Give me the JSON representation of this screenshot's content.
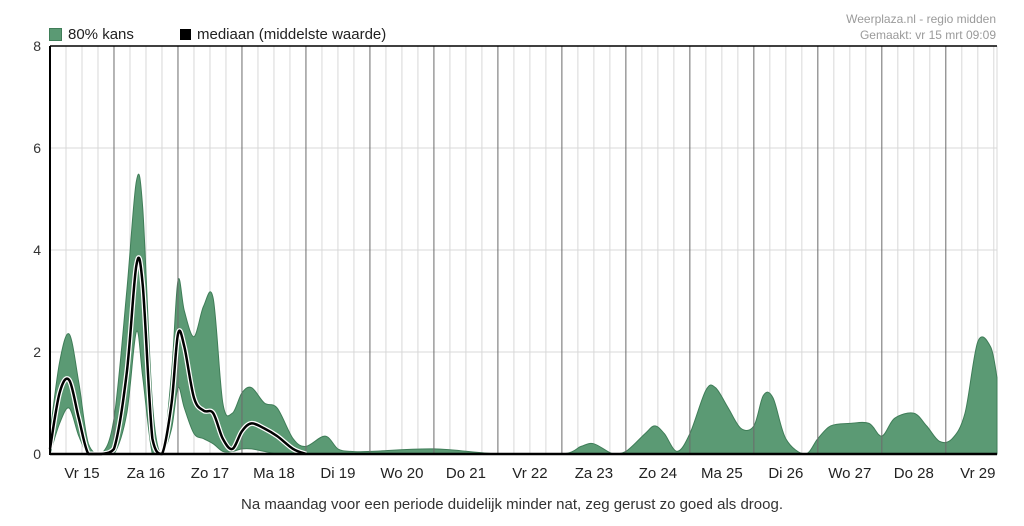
{
  "legend": {
    "band_label": "80% kans",
    "median_label": "mediaan (middelste waarde)"
  },
  "credits": {
    "source": "Weerplaza.nl - regio midden",
    "made": "Gemaakt: vr 15 mrt 09:09"
  },
  "caption": "Na maandag voor een periode duidelijk minder nat, zeg gerust zo goed als droog.",
  "colors": {
    "band": "#5b9a74",
    "band_stroke": "#3f7d58",
    "median": "#000000",
    "grid": "#d8d8d8",
    "day_line": "#6b6b6b"
  },
  "chart_data": {
    "type": "area",
    "title": "",
    "xlabel": "",
    "ylabel": "",
    "x_unit": "days",
    "xlim": [
      0,
      14.8
    ],
    "ylim": [
      0,
      8
    ],
    "yticks": [
      0,
      2,
      4,
      6,
      8
    ],
    "categories": [
      "Vr 15",
      "Za 16",
      "Zo 17",
      "Ma 18",
      "Di 19",
      "Wo 20",
      "Do 21",
      "Vr 22",
      "Za 23",
      "Zo 24",
      "Ma 25",
      "Di 26",
      "Wo 27",
      "Do 28",
      "Vr 29"
    ],
    "grid": true,
    "legend_position": "top-left",
    "series": [
      {
        "name": "80% kans",
        "kind": "band",
        "x": [
          0,
          0.15,
          0.3,
          0.45,
          0.6,
          0.8,
          1.0,
          1.2,
          1.35,
          1.45,
          1.6,
          1.75,
          1.9,
          2.0,
          2.1,
          2.25,
          2.4,
          2.55,
          2.7,
          2.85,
          3.0,
          3.15,
          3.35,
          3.55,
          3.8,
          4.0,
          4.3,
          4.5,
          4.7,
          5.0,
          6.0,
          7.0,
          8.0,
          8.3,
          8.5,
          8.8,
          9.0,
          9.3,
          9.45,
          9.6,
          9.8,
          10.0,
          10.25,
          10.4,
          10.6,
          10.8,
          11.0,
          11.15,
          11.3,
          11.5,
          11.8,
          12.0,
          12.2,
          12.5,
          12.8,
          13.0,
          13.2,
          13.5,
          13.7,
          13.9,
          14.1,
          14.3,
          14.5,
          14.7,
          14.8
        ],
        "upper": [
          0.4,
          1.8,
          2.35,
          1.4,
          0.2,
          0.0,
          0.7,
          3.2,
          5.35,
          4.8,
          1.0,
          0.0,
          1.6,
          3.4,
          2.8,
          2.3,
          2.9,
          3.05,
          1.0,
          0.8,
          1.2,
          1.3,
          1.0,
          0.9,
          0.3,
          0.15,
          0.35,
          0.1,
          0.05,
          0.05,
          0.1,
          0.0,
          0.0,
          0.15,
          0.2,
          0.0,
          0.05,
          0.4,
          0.55,
          0.4,
          0.05,
          0.4,
          1.25,
          1.3,
          0.9,
          0.5,
          0.55,
          1.15,
          1.1,
          0.3,
          0.0,
          0.3,
          0.55,
          0.6,
          0.6,
          0.35,
          0.7,
          0.8,
          0.55,
          0.25,
          0.3,
          0.8,
          2.2,
          2.1,
          1.5
        ],
        "lower": [
          0.0,
          0.6,
          0.9,
          0.35,
          0.0,
          0.0,
          0.0,
          0.8,
          2.4,
          1.5,
          0.0,
          0.0,
          0.5,
          1.3,
          0.9,
          0.4,
          0.3,
          0.2,
          0.05,
          0.05,
          0.1,
          0.1,
          0.05,
          0.0,
          0.0,
          0.0,
          0.0,
          0.0,
          0.0,
          0.0,
          0.0,
          0.0,
          0.0,
          0.0,
          0.0,
          0.0,
          0.0,
          0.0,
          0.0,
          0.0,
          0.0,
          0.0,
          0.0,
          0.0,
          0.0,
          0.0,
          0.0,
          0.0,
          0.0,
          0.0,
          0.0,
          0.0,
          0.0,
          0.0,
          0.0,
          0.0,
          0.0,
          0.0,
          0.0,
          0.0,
          0.0,
          0.0,
          0.0,
          0.0,
          0.0
        ]
      },
      {
        "name": "mediaan (middelste waarde)",
        "kind": "line",
        "x": [
          0,
          0.15,
          0.3,
          0.45,
          0.6,
          0.8,
          1.0,
          1.2,
          1.35,
          1.45,
          1.6,
          1.75,
          1.9,
          2.0,
          2.1,
          2.25,
          2.4,
          2.55,
          2.7,
          2.85,
          3.0,
          3.15,
          3.35,
          3.55,
          3.8,
          4.0
        ],
        "values": [
          0.1,
          1.2,
          1.45,
          0.7,
          0.0,
          0.0,
          0.1,
          1.6,
          3.7,
          3.3,
          0.3,
          0.0,
          1.0,
          2.35,
          2.1,
          1.1,
          0.85,
          0.8,
          0.3,
          0.1,
          0.45,
          0.6,
          0.5,
          0.35,
          0.1,
          0.0
        ]
      }
    ]
  }
}
